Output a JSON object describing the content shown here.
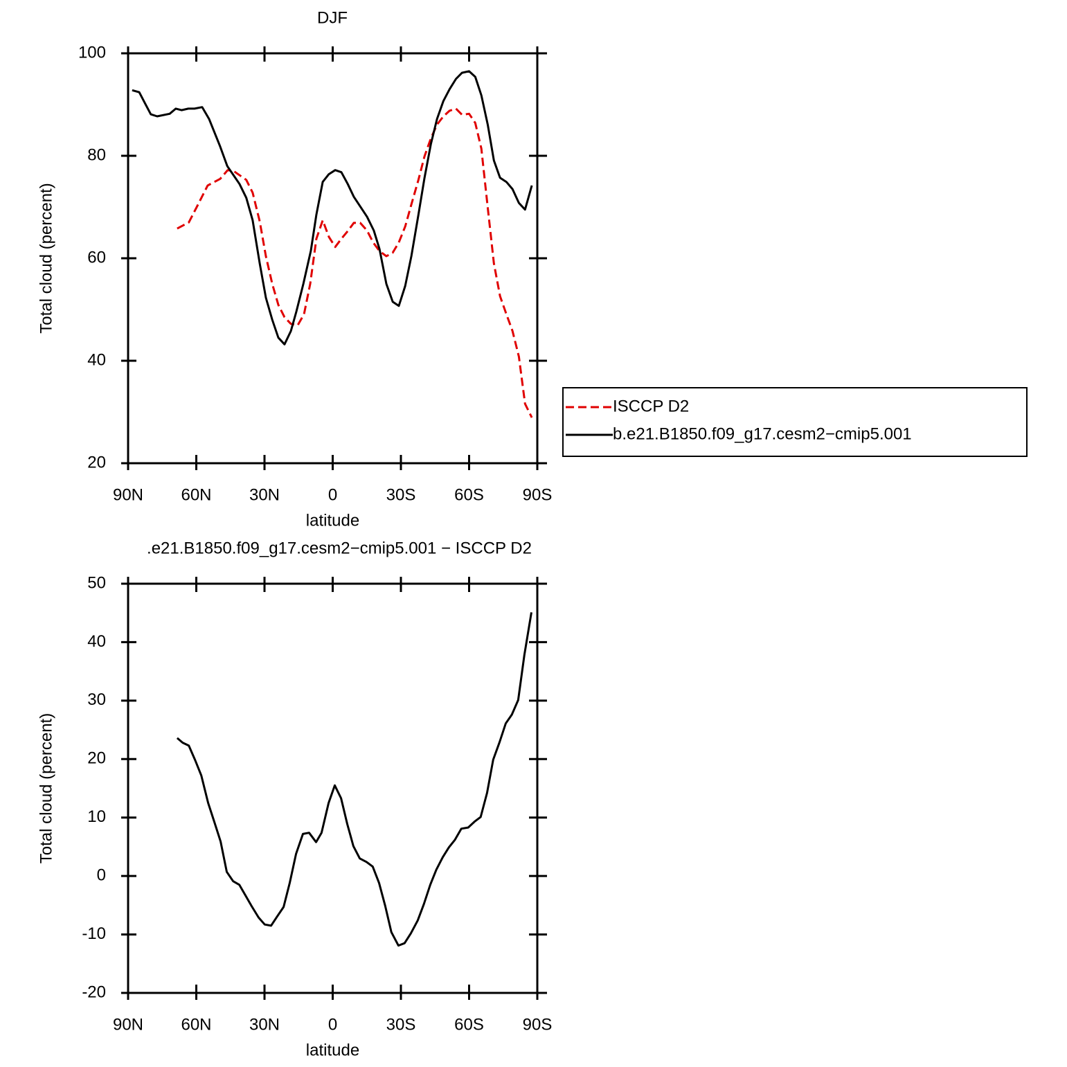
{
  "chart_data": [
    {
      "type": "line",
      "title": "DJF",
      "xlabel": "latitude",
      "ylabel": "Total cloud (percent)",
      "xlim": [
        90,
        -90
      ],
      "xticks": [
        {
          "value": 90,
          "label": "90N"
        },
        {
          "value": 60,
          "label": "60N"
        },
        {
          "value": 30,
          "label": "30N"
        },
        0,
        {
          "value": -30,
          "label": "30S"
        },
        {
          "value": -60,
          "label": "60S"
        },
        {
          "value": -90,
          "label": "90S"
        }
      ],
      "ylim": [
        20,
        100
      ],
      "yticks": [
        20,
        40,
        60,
        80,
        100
      ],
      "legend": "right",
      "series": [
        {
          "name": "ISCCP D2",
          "color": "#e00000",
          "dash": true,
          "x": [
            68.4,
            63.3,
            59.9,
            55,
            49.5,
            46.2,
            43.5,
            38,
            35.2,
            32.1,
            29.4,
            26.6,
            23.9,
            21.2,
            18.4,
            15.4,
            12.6,
            9.9,
            7.2,
            4.4,
            1.7,
            -1.1,
            -3.8,
            -6.6,
            -9.3,
            -12.1,
            -15.1,
            -17.8,
            -20.6,
            -23.6,
            -26.4,
            -29.1,
            -31.9,
            -34.6,
            -37.7,
            -40.4,
            -43.2,
            -45.9,
            -48.7,
            -51.4,
            -54.2,
            -56.9,
            -60,
            -62.7,
            -65.4,
            -68.2,
            -70.9,
            -73.6,
            -76.4,
            -79.1,
            -81.9,
            -84.6,
            -87.6
          ],
          "values": [
            65.8,
            67,
            69.9,
            74.2,
            75.5,
            77.2,
            77,
            75.3,
            72.8,
            67.2,
            60.4,
            55,
            50.9,
            48.5,
            47.2,
            46.9,
            49.1,
            55,
            63.8,
            67.4,
            64.2,
            62.2,
            63.8,
            65.3,
            66.9,
            66.9,
            65.4,
            63.1,
            61.4,
            60.4,
            61.1,
            63.1,
            66.2,
            70.5,
            75.3,
            79.9,
            83.4,
            86.1,
            87.7,
            88.8,
            89.2,
            88,
            88.2,
            86.4,
            81.4,
            69.9,
            59,
            52.6,
            49.1,
            45.8,
            40.8,
            31.6,
            28.9
          ]
        },
        {
          "name": "b.e21.B1850.f09_g17.cesm2−cmip5.001",
          "color": "#000000",
          "dash": false,
          "x": [
            88.2,
            85.1,
            82.4,
            80,
            77.2,
            71.7,
            69,
            66.5,
            63.5,
            60.8,
            57.4,
            54.4,
            49.5,
            46.4,
            41,
            38,
            35.2,
            32.1,
            29.4,
            26.6,
            23.9,
            21.2,
            18.4,
            16,
            12.9,
            9.6,
            7.2,
            4.4,
            1.7,
            -1.1,
            -3.8,
            -6.6,
            -9.3,
            -15.1,
            -18.1,
            -20.6,
            -23.6,
            -26.4,
            -29.1,
            -31.9,
            -34.6,
            -37.7,
            -40.4,
            -43.2,
            -45.9,
            -48.7,
            -51.4,
            -54.2,
            -56.9,
            -60,
            -62.7,
            -65.4,
            -68.2,
            -70.9,
            -73.6,
            -76.4,
            -79.1,
            -81.9,
            -84.6,
            -87.6
          ],
          "values": [
            92.8,
            92.4,
            90.1,
            88.1,
            87.7,
            88.2,
            89.2,
            88.9,
            89.2,
            89.2,
            89.5,
            87.2,
            81.8,
            78,
            74.5,
            71.8,
            67.4,
            59,
            52.3,
            48,
            44.5,
            43.2,
            45.8,
            49.6,
            55,
            61.5,
            68.5,
            74.9,
            76.4,
            77.2,
            76.8,
            74.5,
            72,
            68.1,
            65.4,
            61.8,
            55,
            51.5,
            50.7,
            54.6,
            60.4,
            68.5,
            75.7,
            82.3,
            87.2,
            90.7,
            93,
            95,
            96.2,
            96.5,
            95.4,
            91.8,
            86.1,
            79.1,
            75.7,
            74.9,
            73.5,
            70.8,
            69.5,
            74.2
          ]
        }
      ]
    },
    {
      "type": "line",
      "title": ".e21.B1850.f09_g17.cesm2−cmip5.001 − ISCCP D2",
      "xlabel": "latitude",
      "ylabel": "Total cloud (percent)",
      "xlim": [
        90,
        -90
      ],
      "xticks": [
        {
          "value": 90,
          "label": "90N"
        },
        {
          "value": 60,
          "label": "60N"
        },
        {
          "value": 30,
          "label": "30N"
        },
        0,
        {
          "value": -30,
          "label": "30S"
        },
        {
          "value": -60,
          "label": "60S"
        },
        {
          "value": -90,
          "label": "90S"
        }
      ],
      "ylim": [
        -20,
        50
      ],
      "yticks": [
        -20,
        -10,
        0,
        10,
        20,
        30,
        40,
        50
      ],
      "series": [
        {
          "color": "#000000",
          "dash": false,
          "x": [
            68.4,
            66,
            63.3,
            60.5,
            57.8,
            54.8,
            52.1,
            49.3,
            46.6,
            43.8,
            41.1,
            38.4,
            35.6,
            32.6,
            29.9,
            27.1,
            24.4,
            21.6,
            18.9,
            16.1,
            13.1,
            10.4,
            7.3,
            4.9,
            1.8,
            -0.9,
            -3.7,
            -6.4,
            -9.1,
            -11.9,
            -14.9,
            -17.6,
            -20.4,
            -23.1,
            -25.8,
            -28.9,
            -31.6,
            -34.4,
            -37.4,
            -40.1,
            -42.9,
            -45.6,
            -48.4,
            -51.1,
            -53.8,
            -56.6,
            -59.6,
            -62.4,
            -65.1,
            -67.9,
            -70.6,
            -73.4,
            -76.1,
            -78.8,
            -81.6,
            -84.3,
            -87.4
          ],
          "values": [
            23.6,
            22.8,
            22.3,
            19.8,
            17.2,
            12.5,
            9.3,
            5.9,
            0.7,
            -0.9,
            -1.5,
            -3.3,
            -5.2,
            -7.1,
            -8.3,
            -8.5,
            -6.9,
            -5.3,
            -1.2,
            3.8,
            7.2,
            7.4,
            5.8,
            7.4,
            12.5,
            15.5,
            13.3,
            8.9,
            5.1,
            3,
            2.4,
            1.6,
            -1.2,
            -5.1,
            -9.6,
            -11.9,
            -11.5,
            -9.8,
            -7.6,
            -4.8,
            -1.5,
            1.1,
            3.2,
            4.9,
            6.2,
            8.1,
            8.3,
            9.3,
            10.1,
            14.2,
            19.9,
            22.9,
            26.1,
            27.6,
            30.1,
            37.8,
            45.1
          ]
        }
      ]
    }
  ]
}
